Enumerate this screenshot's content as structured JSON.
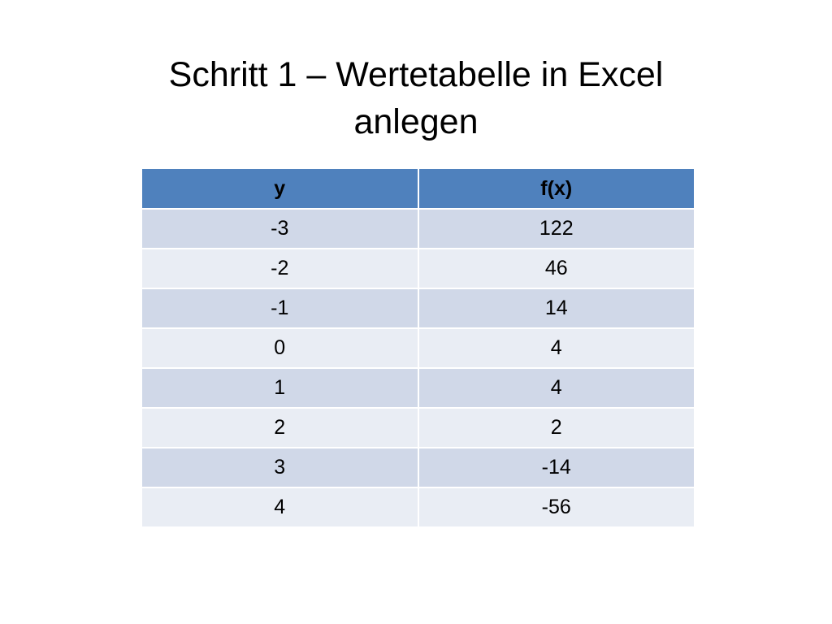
{
  "slide": {
    "title_line1": "Schritt 1 – Wertetabelle in Excel",
    "title_line2": "anlegen"
  },
  "table": {
    "headers": [
      "y",
      "f(x)"
    ],
    "rows": [
      [
        "-3",
        "122"
      ],
      [
        "-2",
        "46"
      ],
      [
        "-1",
        "14"
      ],
      [
        "0",
        "4"
      ],
      [
        "1",
        "4"
      ],
      [
        "2",
        "2"
      ],
      [
        "3",
        "-14"
      ],
      [
        "4",
        "-56"
      ]
    ]
  },
  "colors": {
    "header_fill": "#4f81bd",
    "row_fill_dark": "#d0d8e8",
    "row_fill_light": "#e9edf4"
  }
}
